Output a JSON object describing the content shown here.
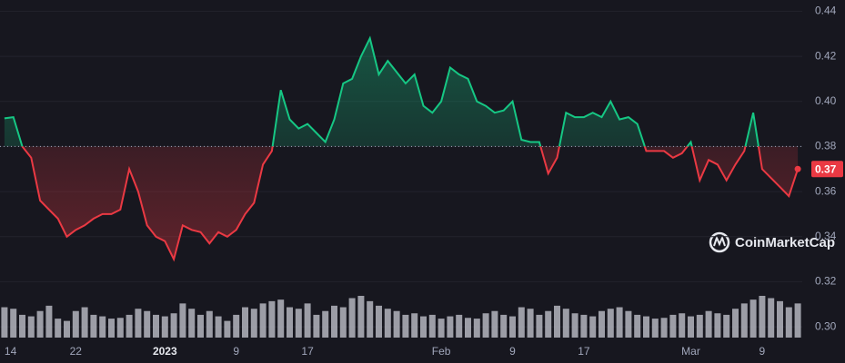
{
  "chart_data": {
    "type": "line",
    "x": [
      0,
      1,
      2,
      3,
      4,
      5,
      6,
      7,
      8,
      9,
      10,
      11,
      12,
      13,
      14,
      15,
      16,
      17,
      18,
      19,
      20,
      21,
      22,
      23,
      24,
      25,
      26,
      27,
      28,
      29,
      30,
      31,
      32,
      33,
      34,
      35,
      36,
      37,
      38,
      39,
      40,
      41,
      42,
      43,
      44,
      45,
      46,
      47,
      48,
      49,
      50,
      51,
      52,
      53,
      54,
      55,
      56,
      57,
      58,
      59,
      60,
      61,
      62,
      63,
      64,
      65,
      66,
      67,
      68,
      69,
      70,
      71,
      72,
      73,
      74,
      75,
      76,
      77,
      78,
      79,
      80,
      81,
      82,
      83,
      84,
      85,
      86,
      87,
      88,
      89
    ],
    "values": [
      0.3925,
      0.393,
      0.38,
      0.375,
      0.356,
      0.352,
      0.348,
      0.34,
      0.343,
      0.345,
      0.348,
      0.35,
      0.35,
      0.352,
      0.37,
      0.36,
      0.345,
      0.34,
      0.338,
      0.33,
      0.345,
      0.343,
      0.342,
      0.337,
      0.342,
      0.34,
      0.343,
      0.35,
      0.355,
      0.372,
      0.378,
      0.405,
      0.392,
      0.388,
      0.39,
      0.386,
      0.382,
      0.392,
      0.408,
      0.41,
      0.42,
      0.428,
      0.412,
      0.418,
      0.413,
      0.408,
      0.412,
      0.398,
      0.395,
      0.4,
      0.415,
      0.412,
      0.41,
      0.4,
      0.398,
      0.395,
      0.396,
      0.4,
      0.383,
      0.382,
      0.382,
      0.368,
      0.375,
      0.395,
      0.393,
      0.393,
      0.395,
      0.393,
      0.4,
      0.392,
      0.393,
      0.39,
      0.378,
      0.378,
      0.378,
      0.375,
      0.377,
      0.382,
      0.365,
      0.374,
      0.372,
      0.365,
      0.372,
      0.378,
      0.395,
      0.37,
      0.366,
      0.362,
      0.358,
      0.37
    ],
    "volumes": [
      40,
      38,
      30,
      28,
      35,
      42,
      25,
      22,
      35,
      40,
      30,
      28,
      25,
      26,
      30,
      38,
      35,
      30,
      28,
      32,
      45,
      38,
      30,
      35,
      28,
      22,
      30,
      40,
      38,
      45,
      48,
      50,
      40,
      38,
      45,
      30,
      35,
      42,
      40,
      52,
      55,
      48,
      42,
      38,
      35,
      30,
      32,
      28,
      30,
      25,
      28,
      30,
      26,
      25,
      32,
      35,
      30,
      28,
      40,
      38,
      30,
      35,
      42,
      38,
      32,
      30,
      28,
      35,
      38,
      40,
      35,
      30,
      28,
      25,
      26,
      30,
      32,
      28,
      30,
      35,
      32,
      30,
      38,
      45,
      50,
      55,
      52,
      48,
      40,
      45
    ],
    "baseline": 0.38,
    "last_price": 0.37,
    "up_color": "#16c784",
    "down_color": "#ea3943",
    "xlim": [
      -0.5,
      89.5
    ],
    "ylim": [
      0.294,
      0.445
    ],
    "xticks": [
      {
        "value": 0,
        "label": "14"
      },
      {
        "value": 8,
        "label": "22"
      },
      {
        "value": 18,
        "label": "2023"
      },
      {
        "value": 26,
        "label": "9"
      },
      {
        "value": 34,
        "label": "17"
      },
      {
        "value": 49,
        "label": "Feb"
      },
      {
        "value": 57,
        "label": "9"
      },
      {
        "value": 65,
        "label": "17"
      },
      {
        "value": 77,
        "label": "Mar"
      },
      {
        "value": 85,
        "label": "9"
      }
    ],
    "yticks": [
      {
        "value": 0.3,
        "label": "0.30"
      },
      0.32,
      0.34,
      0.36,
      0.38,
      {
        "value": 0.4,
        "label": "0.40"
      },
      0.42,
      0.44
    ],
    "grid": true,
    "watermark": "CoinMarketCap"
  }
}
